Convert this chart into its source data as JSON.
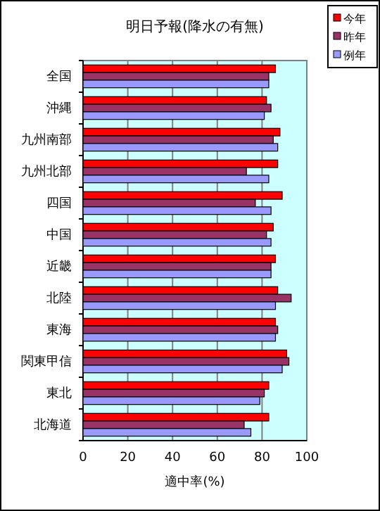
{
  "chart_data": {
    "type": "bar",
    "orientation": "horizontal",
    "title": "明日予報(降水の有無)",
    "xlabel": "適中率(%)",
    "categories": [
      "全国",
      "沖縄",
      "九州南部",
      "九州北部",
      "四国",
      "中国",
      "近畿",
      "北陸",
      "東海",
      "関東甲信",
      "東北",
      "北海道"
    ],
    "series": [
      {
        "name": "今年",
        "color": "#ff0000",
        "values": [
          86,
          82,
          88,
          87,
          89,
          85,
          86,
          87,
          86,
          91,
          83,
          83
        ]
      },
      {
        "name": "昨年",
        "color": "#993366",
        "values": [
          83,
          84,
          85,
          73,
          77,
          82,
          84,
          93,
          87,
          92,
          81,
          72
        ]
      },
      {
        "name": "例年",
        "color": "#9999ff",
        "values": [
          83,
          81,
          87,
          83,
          84,
          84,
          84,
          86,
          86,
          89,
          79,
          75
        ]
      }
    ],
    "xlim": [
      0,
      100
    ],
    "xticks": [
      0,
      20,
      40,
      60,
      80,
      100
    ],
    "grid": "x",
    "legend": "top right"
  }
}
